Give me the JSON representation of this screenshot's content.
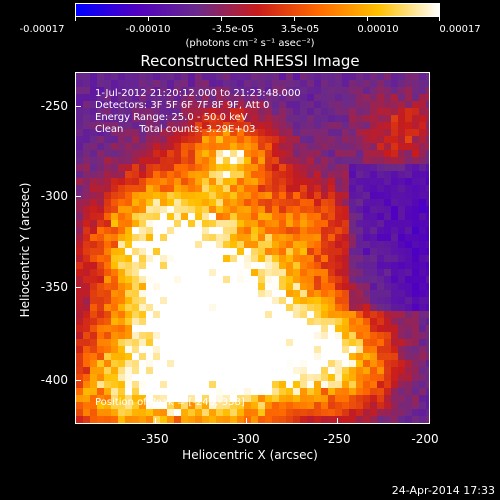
{
  "colorbar": {
    "ticks": [
      "-0.00017",
      "-0.00010",
      "-3.5e-05",
      "3.5e-05",
      "0.00010",
      "0.00017"
    ],
    "units": "(photons cm⁻² s⁻¹ asec⁻²)",
    "gradient": [
      "#0000ff",
      "#5000c0",
      "#6a2a8a",
      "#c81c1c",
      "#ff6a00",
      "#ffc000",
      "#ffffff"
    ]
  },
  "plot": {
    "title": "Reconstructed RHESSI Image",
    "info": [
      "1-Jul-2012 21:20:12.000 to 21:23:48.000",
      "Detectors: 3F 5F 6F 7F 8F 9F, Att 0",
      "Energy Range: 25.0 - 50.0 keV",
      "Clean     Total counts: 3.29E+03"
    ],
    "peak": "Position of Peak = [-246,-338]",
    "x_axis": {
      "label": "Heliocentric X (arcsec)",
      "ticks": [
        "-350",
        "-300",
        "-250",
        "-200"
      ]
    },
    "y_axis": {
      "label": "Heliocentric Y (arcsec)",
      "ticks": [
        "-250",
        "-300",
        "-350",
        "-400"
      ]
    }
  },
  "footer": {
    "date": "24-Apr-2014 17:33"
  }
}
